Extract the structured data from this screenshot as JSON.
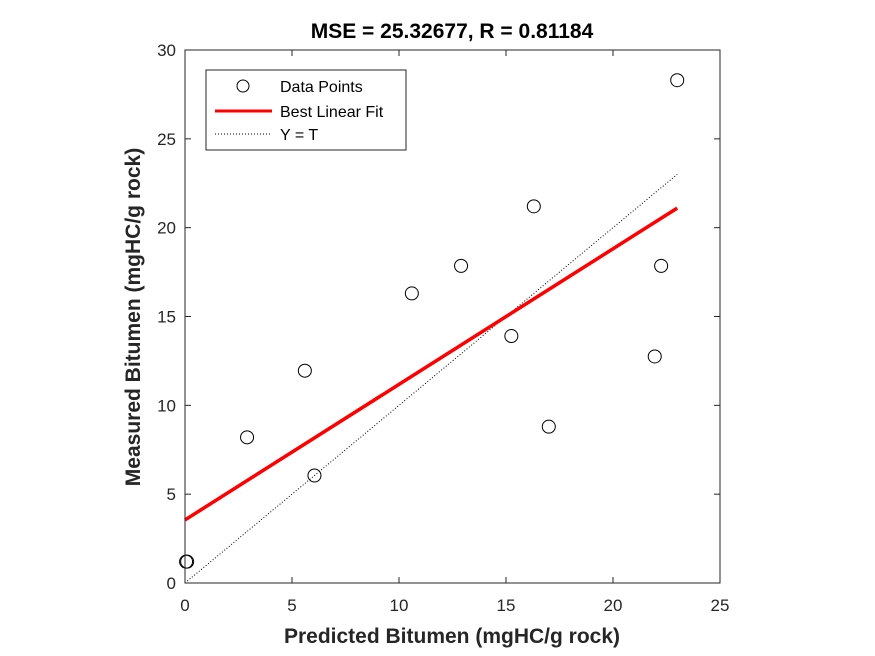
{
  "chart_data": {
    "type": "scatter",
    "title": "MSE = 25.32677, R = 0.81184",
    "xlabel": "Predicted Bitumen (mgHC/g rock)",
    "ylabel": "Measured Bitumen (mgHC/g rock)",
    "xlim": [
      0,
      25
    ],
    "ylim": [
      0,
      30
    ],
    "xticks": [
      0,
      5,
      10,
      15,
      20,
      25
    ],
    "yticks": [
      0,
      5,
      10,
      15,
      20,
      25,
      30
    ],
    "grid": false,
    "legend_position": "top-left",
    "series": [
      {
        "name": "Data Points",
        "kind": "scatter",
        "marker": "open-circle",
        "color": "#000000",
        "x": [
          0.05,
          0.1,
          2.9,
          5.6,
          6.05,
          10.6,
          12.9,
          15.25,
          16.3,
          17.0,
          21.95,
          22.25,
          23.0
        ],
        "y": [
          1.2,
          1.2,
          8.2,
          11.95,
          6.05,
          16.3,
          17.85,
          13.9,
          21.2,
          8.8,
          12.75,
          17.85,
          28.3
        ]
      },
      {
        "name": "Best Linear Fit",
        "kind": "line",
        "color": "#ff0000",
        "x": [
          0,
          23
        ],
        "y": [
          3.55,
          21.1
        ]
      },
      {
        "name": "Y = T",
        "kind": "line",
        "style": "dotted",
        "color": "#000000",
        "x": [
          0,
          23
        ],
        "y": [
          0,
          23
        ]
      }
    ]
  }
}
